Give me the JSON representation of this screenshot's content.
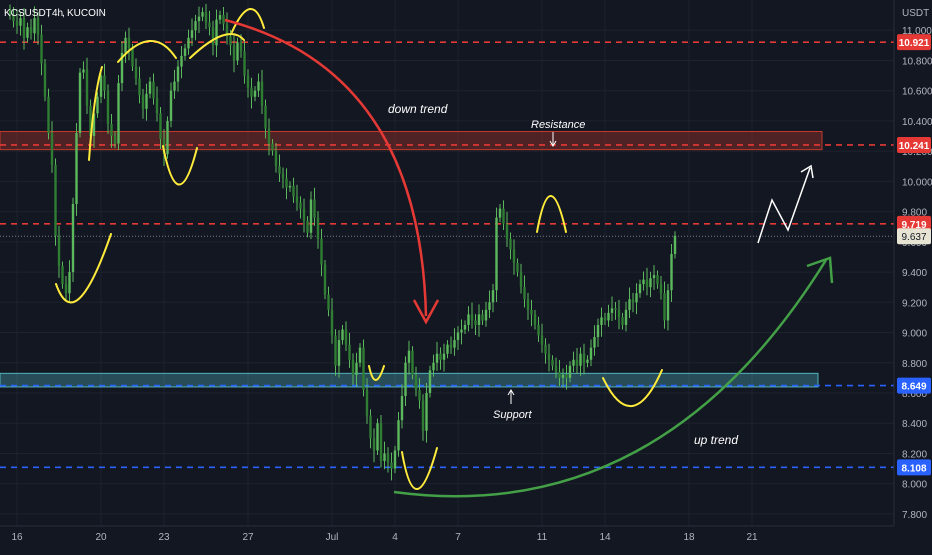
{
  "symbol": {
    "name": "KCSUSDT",
    "interval": "4h",
    "exchange": "KUCOIN"
  },
  "currency_label": "USDT",
  "colors": {
    "background": "#131722",
    "candle_up": "#5cb85c",
    "candle_down": "#5cb85c",
    "resistance_line": "#e53935",
    "support_line": "#2962ff",
    "resistance_box": "#c0392b",
    "support_box": "#4fb3bf",
    "swing_marks": "#ffeb3b",
    "down_arrow": "#e53935",
    "up_arrow": "#43a047",
    "current_price_tag": "#e8e4d4",
    "projection": "#ffffff"
  },
  "chart_data": {
    "type": "candlestick",
    "title": "",
    "xlabel": "",
    "ylabel": "",
    "y_axis_side": "right",
    "ylim": [
      7.72,
      11.2
    ],
    "y_ticks": [
      "11.000",
      "10.800",
      "10.600",
      "10.400",
      "10.200",
      "10.000",
      "9.800",
      "9.600",
      "9.400",
      "9.200",
      "9.000",
      "8.800",
      "8.600",
      "8.400",
      "8.200",
      "8.000",
      "7.800"
    ],
    "x_ticks": [
      {
        "label": "16",
        "bar": 2
      },
      {
        "label": "20",
        "bar": 26
      },
      {
        "label": "23",
        "bar": 44
      },
      {
        "label": "27",
        "bar": 68
      },
      {
        "label": "Jul",
        "bar": 92
      },
      {
        "label": "4",
        "bar": 110
      },
      {
        "label": "7",
        "bar": 128
      },
      {
        "label": "11",
        "bar": 152
      },
      {
        "label": "14",
        "bar": 170
      },
      {
        "label": "18",
        "bar": 194
      },
      {
        "label": "21",
        "bar": 212
      }
    ],
    "close_series": [
      11.1,
      11.06,
      11.03,
      11.08,
      10.95,
      11.02,
      10.98,
      11.08,
      10.97,
      10.78,
      10.56,
      10.32,
      10.11,
      9.64,
      9.44,
      9.32,
      9.26,
      9.4,
      9.85,
      10.32,
      10.72,
      10.74,
      10.5,
      10.3,
      10.45,
      10.56,
      10.7,
      10.6,
      10.38,
      10.3,
      10.25,
      10.65,
      10.85,
      10.95,
      10.88,
      10.76,
      10.68,
      10.57,
      10.48,
      10.58,
      10.66,
      10.55,
      10.45,
      10.28,
      10.18,
      10.4,
      10.6,
      10.66,
      10.76,
      10.83,
      10.88,
      10.95,
      11.0,
      11.06,
      11.09,
      11.12,
      11.05,
      11.02,
      10.9,
      11.07,
      11.1,
      11.04,
      10.96,
      10.9,
      10.8,
      10.92,
      10.86,
      10.7,
      10.62,
      10.56,
      10.6,
      10.66,
      10.5,
      10.35,
      10.25,
      10.2,
      10.1,
      10.05,
      10.02,
      9.96,
      9.97,
      9.9,
      9.86,
      9.82,
      9.74,
      9.66,
      9.88,
      9.76,
      9.62,
      9.45,
      9.25,
      9.15,
      8.98,
      8.78,
      8.95,
      9.02,
      8.92,
      8.82,
      8.72,
      8.8,
      8.9,
      8.62,
      8.45,
      8.3,
      8.22,
      8.4,
      8.15,
      8.2,
      8.14,
      8.1,
      8.22,
      8.42,
      8.58,
      8.8,
      8.88,
      8.72,
      8.62,
      8.55,
      8.35,
      8.6,
      8.75,
      8.8,
      8.86,
      8.82,
      8.86,
      8.92,
      8.9,
      8.95,
      9.0,
      9.02,
      9.05,
      9.12,
      9.08,
      9.05,
      9.12,
      9.08,
      9.15,
      9.2,
      9.28,
      9.76,
      9.82,
      9.72,
      9.62,
      9.55,
      9.46,
      9.4,
      9.3,
      9.22,
      9.15,
      9.12,
      9.05,
      8.98,
      8.92,
      8.86,
      8.82,
      8.78,
      8.74,
      8.7,
      8.72,
      8.7,
      8.78,
      8.82,
      8.78,
      8.86,
      8.8,
      8.82,
      8.9,
      8.97,
      9.05,
      9.1,
      9.08,
      9.13,
      9.16,
      9.15,
      9.1,
      9.05,
      9.15,
      9.22,
      9.2,
      9.26,
      9.32,
      9.35,
      9.3,
      9.36,
      9.38,
      9.32,
      9.26,
      9.08,
      9.28,
      9.52,
      9.64
    ],
    "horizontal_levels": [
      {
        "value": 10.921,
        "label": "10.921",
        "color": "#e53935",
        "style": "dashed"
      },
      {
        "value": 10.241,
        "label": "10.241",
        "color": "#e53935",
        "style": "dashed"
      },
      {
        "value": 9.719,
        "label": "9.719",
        "color": "#e53935",
        "style": "dashed"
      },
      {
        "value": 8.649,
        "label": "8.649",
        "color": "#2962ff",
        "style": "dashed"
      },
      {
        "value": 8.108,
        "label": "8.108",
        "color": "#2962ff",
        "style": "dashed"
      }
    ],
    "current_price": {
      "value": 9.637,
      "label": "9.637"
    },
    "zones": [
      {
        "name": "resistance",
        "from": 10.21,
        "to": 10.33
      },
      {
        "name": "support",
        "from": 8.64,
        "to": 8.73
      }
    ],
    "annotations": [
      {
        "text": "down trend",
        "type": "text"
      },
      {
        "text": "Resistance",
        "type": "text"
      },
      {
        "text": "Support",
        "type": "text"
      },
      {
        "text": "up trend",
        "type": "text"
      }
    ]
  }
}
